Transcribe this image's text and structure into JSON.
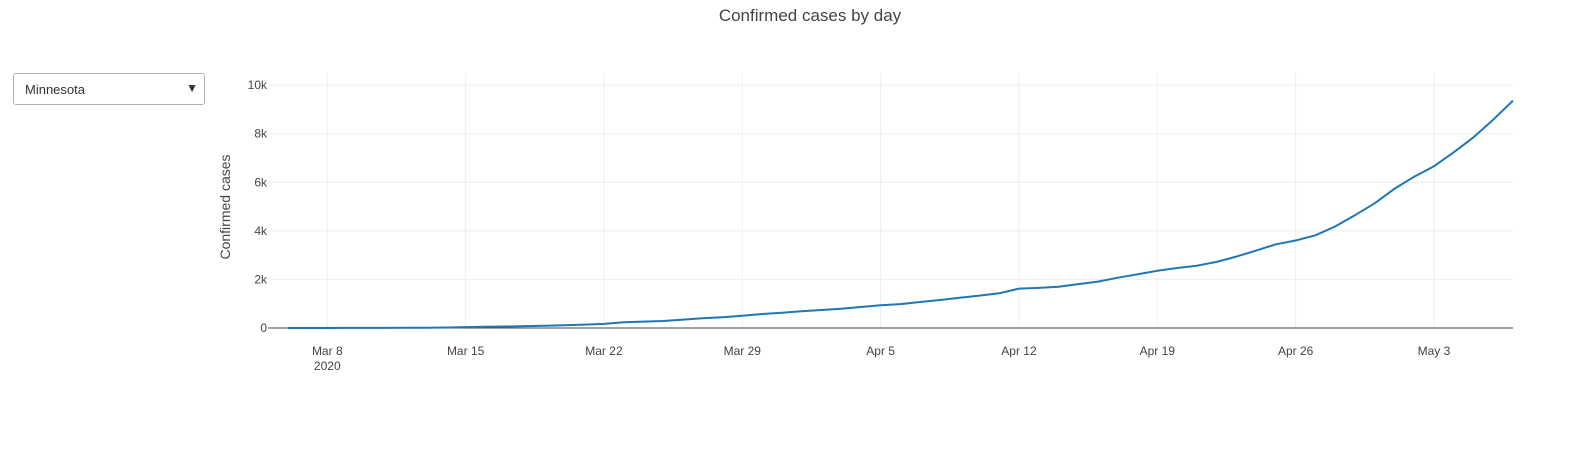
{
  "selector": {
    "selected": "Minnesota",
    "arrow_glyph": "▼"
  },
  "chart_data": {
    "type": "line",
    "title": "Confirmed cases by day",
    "xlabel": "",
    "ylabel": "Confirmed cases",
    "x_start": "2020-03-05",
    "x_end": "2020-05-07",
    "ylim": [
      0,
      10500
    ],
    "yticks": [
      {
        "value": 0,
        "label": "0"
      },
      {
        "value": 2000,
        "label": "2k"
      },
      {
        "value": 4000,
        "label": "4k"
      },
      {
        "value": 6000,
        "label": "6k"
      },
      {
        "value": 8000,
        "label": "8k"
      },
      {
        "value": 10000,
        "label": "10k"
      }
    ],
    "xticks": [
      {
        "date": "2020-03-08",
        "label": "Mar 8",
        "sublabel": "2020"
      },
      {
        "date": "2020-03-15",
        "label": "Mar 15"
      },
      {
        "date": "2020-03-22",
        "label": "Mar 22"
      },
      {
        "date": "2020-03-29",
        "label": "Mar 29"
      },
      {
        "date": "2020-04-05",
        "label": "Apr 5"
      },
      {
        "date": "2020-04-12",
        "label": "Apr 12"
      },
      {
        "date": "2020-04-19",
        "label": "Apr 19"
      },
      {
        "date": "2020-04-26",
        "label": "Apr 26"
      },
      {
        "date": "2020-05-03",
        "label": "May 3"
      }
    ],
    "grid": true,
    "line_color": "#1f77b4",
    "series": [
      {
        "x": [
          "2020-03-06",
          "2020-03-07",
          "2020-03-08",
          "2020-03-09",
          "2020-03-10",
          "2020-03-11",
          "2020-03-12",
          "2020-03-13",
          "2020-03-14",
          "2020-03-15",
          "2020-03-16",
          "2020-03-17",
          "2020-03-18",
          "2020-03-19",
          "2020-03-20",
          "2020-03-21",
          "2020-03-22",
          "2020-03-23",
          "2020-03-24",
          "2020-03-25",
          "2020-03-26",
          "2020-03-27",
          "2020-03-28",
          "2020-03-29",
          "2020-03-30",
          "2020-03-31",
          "2020-04-01",
          "2020-04-02",
          "2020-04-03",
          "2020-04-04",
          "2020-04-05",
          "2020-04-06",
          "2020-04-07",
          "2020-04-08",
          "2020-04-09",
          "2020-04-10",
          "2020-04-11",
          "2020-04-12",
          "2020-04-13",
          "2020-04-14",
          "2020-04-15",
          "2020-04-16",
          "2020-04-17",
          "2020-04-18",
          "2020-04-19",
          "2020-04-20",
          "2020-04-21",
          "2020-04-22",
          "2020-04-23",
          "2020-04-24",
          "2020-04-25",
          "2020-04-26",
          "2020-04-27",
          "2020-04-28",
          "2020-04-29",
          "2020-04-30",
          "2020-05-01",
          "2020-05-02",
          "2020-05-03",
          "2020-05-04",
          "2020-05-05",
          "2020-05-06",
          "2020-05-07"
        ],
        "values": [
          1,
          1,
          2,
          3,
          3,
          5,
          9,
          14,
          21,
          35,
          54,
          60,
          77,
          89,
          115,
          138,
          169,
          235,
          262,
          287,
          346,
          398,
          441,
          503,
          576,
          629,
          689,
          742,
          789,
          865,
          935,
          986,
          1069,
          1154,
          1242,
          1336,
          1427,
          1621,
          1650,
          1695,
          1809,
          1912,
          2071,
          2213,
          2356,
          2470,
          2567,
          2721,
          2942,
          3185,
          3446,
          3602,
          3816,
          4181,
          4644,
          5136,
          5730,
          6228,
          6663,
          7234,
          7851,
          8579,
          9365
        ]
      }
    ]
  }
}
